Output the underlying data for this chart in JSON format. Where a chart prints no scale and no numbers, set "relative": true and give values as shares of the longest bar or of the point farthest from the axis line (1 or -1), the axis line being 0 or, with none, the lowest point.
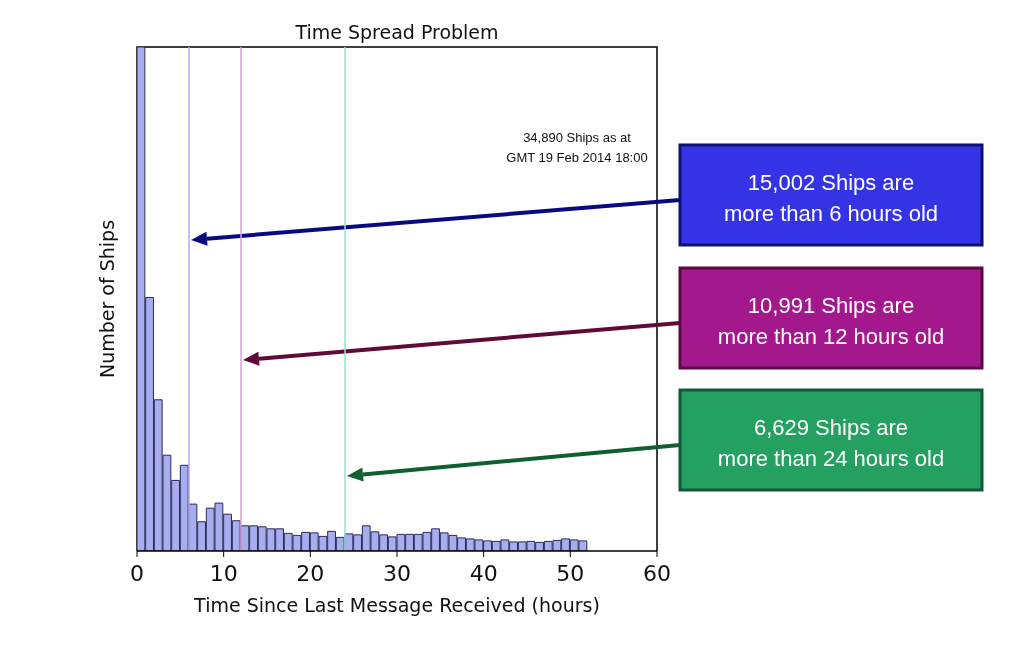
{
  "chart_data": {
    "type": "bar",
    "title": "Time Spread Problem",
    "xlabel": "Time Since Last Message Received (hours)",
    "ylabel": "Number of Ships",
    "relative": true,
    "color": "#a6aef0",
    "x": [
      0.5,
      1.5,
      2.5,
      3.5,
      4.5,
      5.5,
      6.5,
      7.5,
      8.5,
      9.5,
      10.5,
      11.5,
      12.5,
      13.5,
      14.5,
      15.5,
      16.5,
      17.5,
      18.5,
      19.5,
      20.5,
      21.5,
      22.5,
      23.5,
      24.5,
      25.5,
      26.5,
      27.5,
      28.5,
      29.5,
      30.5,
      31.5,
      32.5,
      33.5,
      34.5,
      35.5,
      36.5,
      37.5,
      38.5,
      39.5,
      40.5,
      41.5,
      42.5,
      43.5,
      44.5,
      45.5,
      46.5,
      47.5,
      48.5,
      49.5,
      50.5,
      51.5
    ],
    "values": [
      1.0,
      0.503,
      0.3,
      0.19,
      0.14,
      0.17,
      0.093,
      0.058,
      0.085,
      0.095,
      0.073,
      0.06,
      0.05,
      0.05,
      0.048,
      0.044,
      0.044,
      0.035,
      0.031,
      0.037,
      0.036,
      0.029,
      0.039,
      0.027,
      0.034,
      0.032,
      0.05,
      0.038,
      0.032,
      0.028,
      0.033,
      0.033,
      0.033,
      0.037,
      0.044,
      0.036,
      0.031,
      0.026,
      0.024,
      0.022,
      0.02,
      0.019,
      0.022,
      0.018,
      0.018,
      0.019,
      0.017,
      0.019,
      0.021,
      0.024,
      0.022,
      0.02
    ],
    "xlim": [
      0,
      60
    ],
    "xticks": [
      0,
      10,
      20,
      30,
      40,
      50,
      60
    ],
    "grid": false,
    "legend": false,
    "ref_lines": [
      {
        "axis": "x",
        "value": 6,
        "color": "#b4aaf0"
      },
      {
        "axis": "x",
        "value": 12,
        "color": "#d8a0d8"
      },
      {
        "axis": "x",
        "value": 24,
        "color": "#98e4c4"
      }
    ],
    "annotations": [
      "34,890 Ships as at\nGMT 19 Feb 2014 18:00",
      "15,002 Ships are\nmore than 6 hours old",
      "10,991 Ships are\nmore than 12 hours old",
      "6,629 Ships are\nmore than 24 hours old"
    ]
  }
}
